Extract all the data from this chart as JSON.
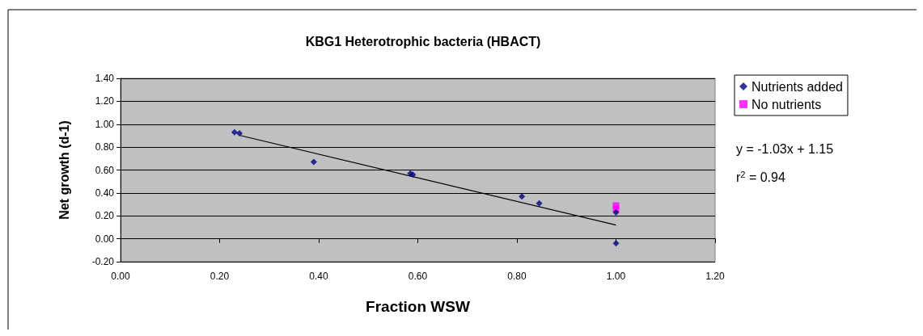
{
  "chart_data": {
    "type": "scatter",
    "title": "KBG1 Heterotrophic bacteria (HBACT)",
    "xlabel": "Fraction WSW",
    "ylabel": "Net growth (d-1)",
    "series": [
      {
        "name": "Nutrients added",
        "color": "#000080",
        "marker": "diamond",
        "x": [
          0.23,
          0.24,
          0.39,
          0.585,
          0.59,
          0.81,
          0.845,
          1.0,
          1.0
        ],
        "values": [
          0.93,
          0.92,
          0.67,
          0.57,
          0.56,
          0.37,
          0.31,
          0.23,
          -0.04
        ]
      },
      {
        "name": "No nutrients",
        "color": "#ff00ff",
        "marker": "square",
        "x": [
          1.0,
          1.0
        ],
        "values": [
          0.29,
          0.26
        ]
      },
      {
        "type": "line",
        "color": "#000000",
        "marker": "none",
        "x": [
          0.24,
          1.0
        ],
        "values": [
          0.903,
          0.12
        ]
      }
    ],
    "xlim": [
      0,
      1.2
    ],
    "xticks": [
      {
        "value": 0,
        "label": "0.00"
      },
      {
        "value": 0.2,
        "label": "0.20"
      },
      {
        "value": 0.4,
        "label": "0.40"
      },
      {
        "value": 0.6,
        "label": "0.60"
      },
      {
        "value": 0.8,
        "label": "0.80"
      },
      {
        "value": 1,
        "label": "1.00"
      },
      {
        "value": 1.2,
        "label": "1.20"
      }
    ],
    "ylim": [
      -0.2,
      1.4
    ],
    "yticks": [
      {
        "value": -0.2,
        "label": "-0.20"
      },
      {
        "value": 0,
        "label": "0.00"
      },
      {
        "value": 0.2,
        "label": "0.20"
      },
      {
        "value": 0.4,
        "label": "0.40"
      },
      {
        "value": 0.6,
        "label": "0.60"
      },
      {
        "value": 0.8,
        "label": "0.80"
      },
      {
        "value": 1,
        "label": "1.00"
      },
      {
        "value": 1.2,
        "label": "1.20"
      },
      {
        "value": 1.4,
        "label": "1.40"
      }
    ],
    "grid": "y",
    "legend": "right",
    "annotations": [
      "y = -1.03x + 1.15",
      "r$^{2}$ = 0.94"
    ]
  }
}
